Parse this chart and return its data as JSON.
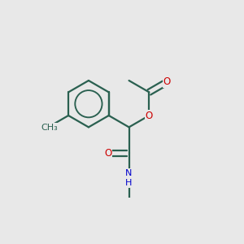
{
  "bg": "#e8e8e8",
  "lc": "#2a6050",
  "red": "#cc0000",
  "blue": "#0000cc",
  "magenta": "#cc00cc",
  "lw": 1.6,
  "fs": 8.5,
  "figsize": [
    3.0,
    3.0
  ],
  "dpi": 100,
  "xlim": [
    -1.6,
    2.2
  ],
  "ylim": [
    -1.6,
    1.6
  ]
}
